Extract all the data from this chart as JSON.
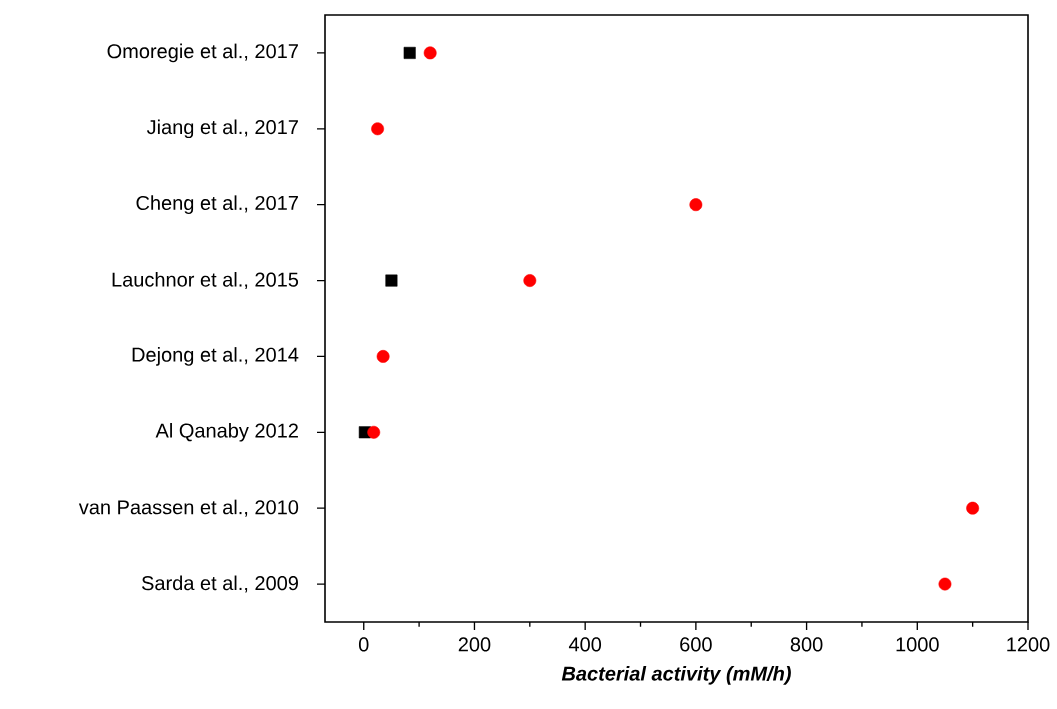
{
  "chart_data": {
    "type": "scatter",
    "xlabel": "**Bacterial activity (mM/h)**",
    "categories": [
      "Omoregie et al., 2017",
      "Jiang et al., 2017",
      "Cheng et al., 2017",
      "Lauchnor et al., 2015",
      "Dejong et al., 2014",
      "Al Qanaby 2012",
      "van Paassen et al., 2010",
      "Sarda et al., 2009"
    ],
    "orientation": "horizontal",
    "series": [
      {
        "color": "#000000",
        "marker": "square",
        "values": [
          83,
          null,
          null,
          50,
          null,
          2,
          null,
          null
        ]
      },
      {
        "color": "#ff0000",
        "marker": "circle",
        "values": [
          120,
          25,
          600,
          300,
          35,
          18,
          1100,
          1050
        ]
      }
    ],
    "xlim": [
      -70,
      1200
    ],
    "xticks": [
      0,
      {
        "value": 100,
        "label": null
      },
      200,
      {
        "value": 300,
        "label": null
      },
      400,
      {
        "value": 500,
        "label": null
      },
      600,
      {
        "value": 700,
        "label": null
      },
      800,
      {
        "value": 900,
        "label": null
      },
      1000,
      {
        "value": 1100,
        "label": null
      },
      1200
    ],
    "grid": false
  }
}
